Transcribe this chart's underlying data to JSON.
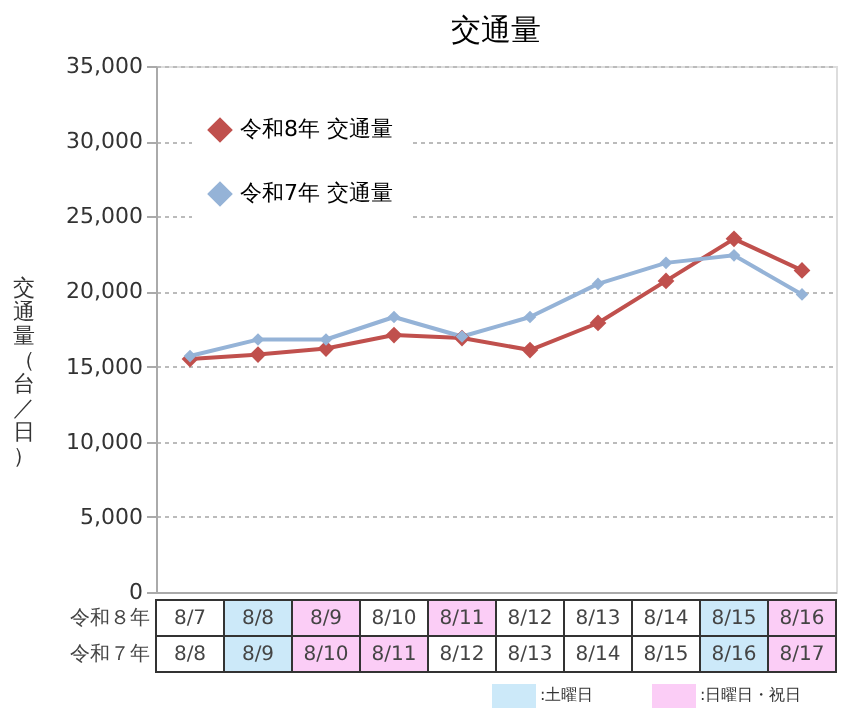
{
  "chart_data": {
    "type": "line",
    "title": "交通量",
    "ylabel": "交通量（台／日）",
    "categories": [
      "8/7",
      "8/8",
      "8/9",
      "8/10",
      "8/11",
      "8/12",
      "8/13",
      "8/14",
      "8/15",
      "8/16"
    ],
    "series": [
      {
        "name": "令和8年 交通量",
        "color": "#c0504d",
        "values": [
          15500,
          15800,
          16200,
          17100,
          16900,
          16100,
          17900,
          20700,
          23500,
          21400
        ]
      },
      {
        "name": "令和7年 交通量",
        "color": "#95b3d7",
        "values": [
          15700,
          16800,
          16800,
          18300,
          17000,
          18300,
          20500,
          21900,
          22400,
          19800
        ]
      }
    ],
    "ylim": [
      0,
      35000
    ],
    "yticks": [
      0,
      {
        "value": 5000,
        "label": "5,000"
      },
      {
        "value": 10000,
        "label": "10,000"
      },
      {
        "value": 15000,
        "label": "15,000"
      },
      {
        "value": 20000,
        "label": "20,000"
      },
      {
        "value": 25000,
        "label": "25,000"
      },
      {
        "value": 30000,
        "label": "30,000"
      },
      {
        "value": 35000,
        "label": "35,000"
      }
    ],
    "grid": "y",
    "legend": "top left",
    "marker": "diamond",
    "line_style": "solid",
    "annotations": [
      "令和８年",
      "令和７年",
      "8/8",
      "8/9",
      "8/10",
      "8/11",
      "8/12",
      "8/13",
      "8/14",
      "8/15",
      "8/16",
      "8/17",
      ":土曜日",
      ":日曜日・祝日"
    ]
  }
}
